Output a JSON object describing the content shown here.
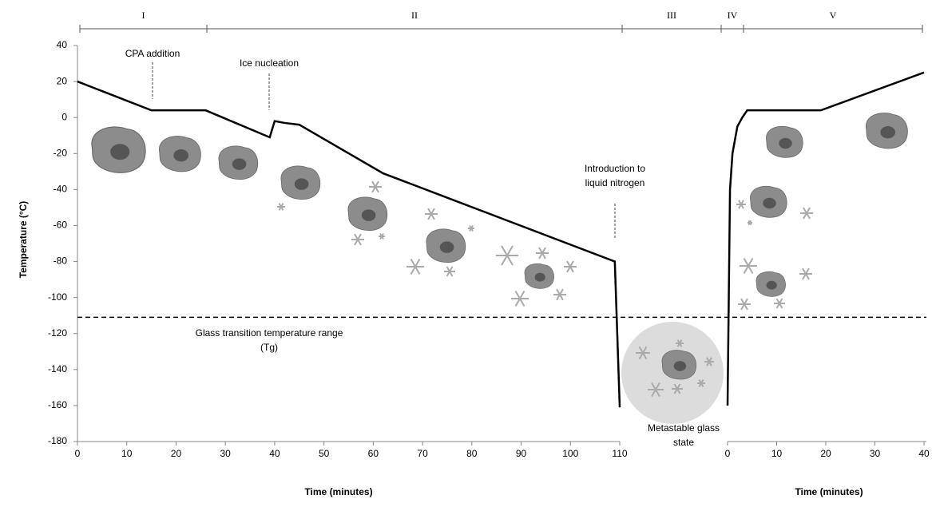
{
  "chart_data": [
    {
      "type": "line",
      "ylabel": "Temperature (°C)",
      "xlabel": "Time (minutes)",
      "xlim": [
        0,
        110
      ],
      "xticks": [
        0,
        10,
        20,
        30,
        40,
        50,
        60,
        70,
        80,
        90,
        100,
        110
      ],
      "ylim": [
        -180,
        40
      ],
      "yticks": [
        -180,
        -160,
        -140,
        -120,
        -100,
        -80,
        -60,
        -40,
        -20,
        0,
        20,
        40
      ],
      "x": [
        0,
        15,
        26,
        39,
        40,
        42,
        45,
        62,
        109,
        110
      ],
      "values": [
        20,
        4,
        4,
        -11,
        -2,
        -3,
        -4,
        -31,
        -80,
        -161
      ],
      "color": "#000000",
      "phases": [
        "I",
        "II",
        "III",
        "IV",
        "V"
      ],
      "reference_line": {
        "value": -111,
        "label": [
          "Glass transition temperature range",
          "(Tg)"
        ]
      },
      "annotations": [
        "CPA addition",
        "Ice nucleation",
        [
          "Introduction to",
          "liquid nitrogen"
        ],
        [
          "Metastable glass",
          "state"
        ]
      ]
    },
    {
      "type": "line",
      "xlabel": "Time (minutes)",
      "xlim": [
        0,
        40
      ],
      "xticks": [
        0,
        10,
        20,
        30,
        40
      ],
      "x": [
        0,
        0.5,
        1,
        2,
        3,
        4,
        19,
        40
      ],
      "values": [
        -160,
        -40,
        -20,
        -5,
        0,
        4,
        4,
        25
      ],
      "color": "#000000"
    }
  ]
}
